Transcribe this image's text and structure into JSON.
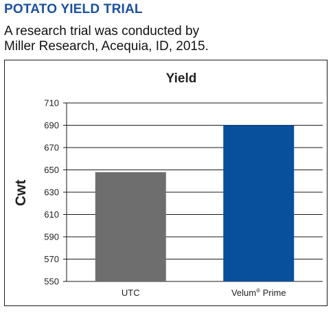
{
  "heading": "POTATO YIELD TRIAL",
  "subtitle_lines": [
    "A research trial was conducted by",
    "Miller Research, Acequia, ID, 2015."
  ],
  "colors": {
    "heading": "#1a50a0",
    "utc_bar": "#6e6e6e",
    "velum_bar": "#084f9c",
    "gridline": "#1a1a1a"
  },
  "chart_data": {
    "type": "bar",
    "title": "Yield",
    "xlabel": "",
    "ylabel": "Cwt",
    "ylim": [
      550,
      710
    ],
    "yticks": [
      550,
      570,
      590,
      610,
      630,
      650,
      670,
      690,
      710
    ],
    "grid": true,
    "categories": [
      "UTC",
      "Velum® Prime"
    ],
    "values": [
      648,
      690
    ],
    "bar_colors": [
      "#6e6e6e",
      "#084f9c"
    ]
  }
}
